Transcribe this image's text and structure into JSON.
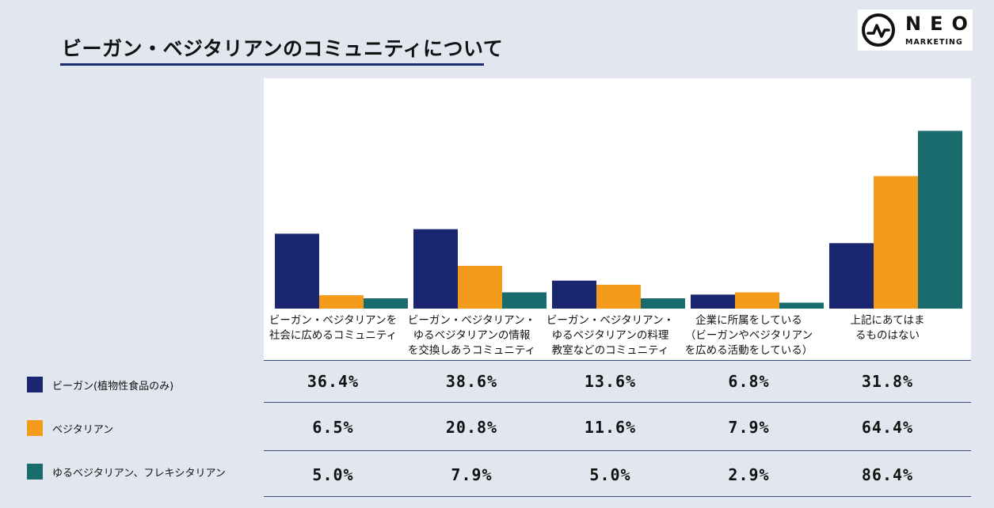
{
  "page": {
    "title": "ビーガン・ベジタリアンのコミュニティについて"
  },
  "logo": {
    "name": "NEO",
    "sub": "MARKETING"
  },
  "colors": {
    "vegan": "#1b2670",
    "vegetarian": "#f59b1c",
    "flexitarian": "#1a6b6e"
  },
  "chart_data": {
    "type": "bar",
    "title": "ビーガン・ベジタリアンのコミュニティについて",
    "categories": [
      "ビーガン・ベジタリアンを\n社会に広めるコミュニティ",
      "ビーガン・ベジタリアン・\nゆるベジタリアンの情報\nを交換しあうコミュニティ",
      "ビーガン・ベジタリアン・\nゆるベジタリアンの料理\n教室などのコミュニティ",
      "企業に所属をしている\n（ビーガンやベジタリアン\nを広める活動をしている）",
      "上記にあてはま\nるものはない"
    ],
    "series": [
      {
        "name": "ビーガン(植物性食品のみ)",
        "values": [
          36.4,
          38.6,
          13.6,
          6.8,
          31.8
        ],
        "labels": [
          "36.4%",
          "38.6%",
          "13.6%",
          "6.8%",
          "31.8%"
        ]
      },
      {
        "name": "ベジタリアン",
        "values": [
          6.5,
          20.8,
          11.6,
          7.9,
          64.4
        ],
        "labels": [
          "6.5%",
          "20.8%",
          "11.6%",
          "7.9%",
          "64.4%"
        ]
      },
      {
        "name": "ゆるベジタリアン、フレキシタリアン",
        "values": [
          5.0,
          7.9,
          5.0,
          2.9,
          86.4
        ],
        "labels": [
          "5.0%",
          "7.9%",
          "5.0%",
          "2.9%",
          "86.4%"
        ]
      }
    ],
    "ylim": [
      0,
      100
    ],
    "xlabel": "",
    "ylabel": ""
  }
}
